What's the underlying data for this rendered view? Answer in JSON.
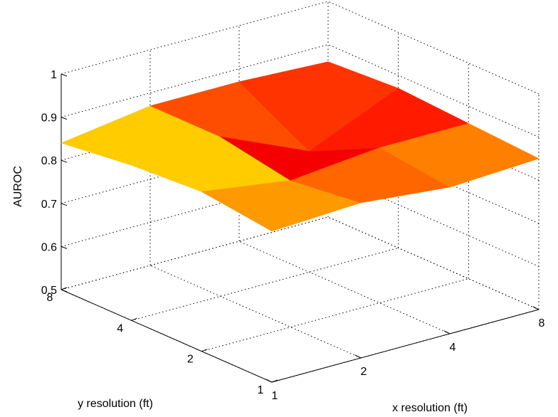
{
  "chart_data": {
    "type": "surface",
    "title": "",
    "xlabel": "x resolution (ft)",
    "ylabel": "y resolution (ft)",
    "zlabel": "AUROC",
    "x_ticks": [
      "1",
      "2",
      "4",
      "8"
    ],
    "y_ticks": [
      "1",
      "2",
      "4",
      "8"
    ],
    "z_ticks": [
      "0.5",
      "0.6",
      "0.7",
      "0.8",
      "0.9",
      "1"
    ],
    "x": [
      1,
      2,
      4,
      8
    ],
    "y": [
      1,
      2,
      4,
      8
    ],
    "z": [
      [
        0.85,
        0.86,
        0.84,
        0.85
      ],
      [
        0.87,
        0.84,
        0.86,
        0.86
      ],
      [
        0.86,
        0.87,
        0.78,
        0.87
      ],
      [
        0.84,
        0.87,
        0.87,
        0.86
      ]
    ],
    "zlim": [
      0.5,
      1
    ],
    "grid": true,
    "colormap": "hot-to-green",
    "colors": [
      "#000000",
      "#8b0000",
      "#ff0000",
      "#ff9900",
      "#ffff00",
      "#33e676"
    ]
  }
}
